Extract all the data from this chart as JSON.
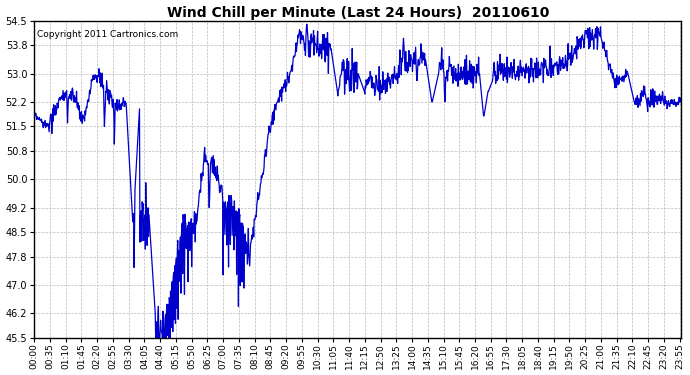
{
  "title": "Wind Chill per Minute (Last 24 Hours)  20110610",
  "copyright_text": "Copyright 2011 Cartronics.com",
  "line_color": "#0000cc",
  "bg_color": "#ffffff",
  "plot_bg_color": "#ffffff",
  "grid_color": "#bbbbbb",
  "yticks": [
    45.5,
    46.2,
    47.0,
    47.8,
    48.5,
    49.2,
    50.0,
    50.8,
    51.5,
    52.2,
    53.0,
    53.8,
    54.5
  ],
  "ylim": [
    45.5,
    54.5
  ],
  "title_fontsize": 10,
  "copyright_fontsize": 6.5,
  "tick_fontsize": 7
}
